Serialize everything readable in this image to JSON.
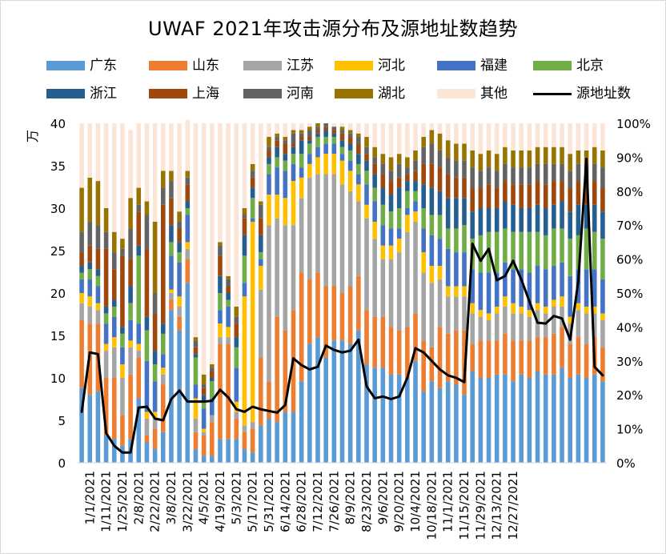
{
  "title": "UWAF 2021年攻击源分布及源地址数趋势",
  "chart_data": {
    "type": "bar",
    "stacked": true,
    "title": "UWAF 2021年攻击源分布及源地址数趋势",
    "ylabel": "万",
    "ylim": [
      0,
      40
    ],
    "yticks": [
      "0",
      "5",
      "10",
      "15",
      "20",
      "25",
      "30",
      "35",
      "40"
    ],
    "y2lim": [
      0,
      100
    ],
    "y2ticks": [
      "0%",
      "10%",
      "20%",
      "30%",
      "40%",
      "50%",
      "60%",
      "70%",
      "80%",
      "90%",
      "100%"
    ],
    "legend_position": "top",
    "grid": false,
    "xtick_labels": [
      "1/1/2021",
      "1/11/2021",
      "1/25/2021",
      "2/8/2021",
      "2/22/2021",
      "3/8/2021",
      "3/22/2021",
      "4/5/2021",
      "4/19/2021",
      "5/3/2021",
      "5/17/2021",
      "5/31/2021",
      "6/14/2021",
      "6/28/2021",
      "7/12/2021",
      "7/26/2021",
      "8/9/2021",
      "8/23/2021",
      "9/6/2021",
      "9/20/2021",
      "10/4/2021",
      "10/18/2021",
      "11/1/2021",
      "11/15/2021",
      "11/29/2021",
      "12/13/2021",
      "12/27/2021"
    ],
    "stack_series": [
      {
        "name": "广东",
        "color": "#5b9bd5"
      },
      {
        "name": "山东",
        "color": "#ed7d31"
      },
      {
        "name": "江苏",
        "color": "#a5a5a5"
      },
      {
        "name": "河北",
        "color": "#ffc000"
      },
      {
        "name": "福建",
        "color": "#4472c4"
      },
      {
        "name": "北京",
        "color": "#70ad47"
      },
      {
        "name": "浙江",
        "color": "#255e91"
      },
      {
        "name": "上海",
        "color": "#9e480e"
      },
      {
        "name": "河南",
        "color": "#636363"
      },
      {
        "name": "湖北",
        "color": "#997300"
      },
      {
        "name": "其他",
        "color": "#fbe5d6"
      }
    ],
    "line_series": {
      "name": "源地址数",
      "color": "#000000",
      "axis": "left"
    },
    "bars": [
      [
        22,
        20,
        5,
        3,
        4,
        2,
        2,
        4,
        6,
        13,
        19
      ],
      [
        20,
        21,
        5,
        3,
        5,
        3,
        2,
        5,
        7,
        13,
        16
      ],
      [
        21,
        20,
        4,
        2,
        5,
        3,
        2,
        6,
        7,
        13,
        17
      ],
      [
        8,
        17,
        8,
        2,
        6,
        3,
        2,
        17,
        5,
        7,
        25
      ],
      [
        7,
        18,
        9,
        3,
        6,
        3,
        2,
        9,
        5,
        6,
        32
      ],
      [
        5,
        9,
        11,
        4,
        5,
        4,
        2,
        21,
        2,
        3,
        34
      ],
      [
        7,
        19,
        8,
        2,
        6,
        5,
        5,
        8,
        9,
        9,
        20
      ],
      [
        19,
        12,
        2,
        2,
        6,
        20,
        3,
        10,
        2,
        5,
        19
      ],
      [
        6,
        2,
        5,
        2,
        15,
        9,
        4,
        20,
        10,
        4,
        23
      ],
      [
        4,
        6,
        3,
        2,
        9,
        5,
        4,
        11,
        6,
        21,
        29
      ],
      [
        9,
        14,
        3,
        2,
        4,
        6,
        3,
        35,
        5,
        5,
        14
      ],
      [
        45,
        3,
        2,
        1,
        10,
        4,
        5,
        8,
        5,
        3,
        14
      ],
      [
        39,
        4,
        3,
        3,
        10,
        3,
        3,
        4,
        2,
        3,
        26
      ],
      [
        53,
        7,
        3,
        2,
        8,
        2,
        2,
        5,
        2,
        2,
        15
      ],
      [
        4,
        5,
        4,
        6,
        4,
        8,
        1,
        2,
        2,
        1,
        63
      ],
      [
        2,
        6,
        1,
        1,
        6,
        2,
        2,
        2,
        1,
        3,
        74
      ],
      [
        2,
        10,
        2,
        0,
        5,
        5,
        1,
        2,
        1,
        1,
        71
      ],
      [
        7,
        28,
        2,
        4,
        4,
        5,
        5,
        6,
        3,
        1,
        35
      ],
      [
        7,
        28,
        2,
        3,
        6,
        2,
        2,
        2,
        2,
        1,
        45
      ],
      [
        7,
        6,
        2,
        3,
        10,
        6,
        3,
        4,
        2,
        3,
        54
      ],
      [
        4,
        5,
        2,
        38,
        4,
        8,
        6,
        5,
        1,
        2,
        25
      ],
      [
        3,
        7,
        2,
        59,
        1,
        6,
        3,
        3,
        2,
        2,
        12
      ],
      [
        11,
        20,
        20,
        7,
        2,
        2,
        5,
        5,
        4,
        1,
        23
      ],
      [
        13,
        11,
        46,
        9,
        6,
        3,
        2,
        2,
        1,
        3,
        4
      ],
      [
        12,
        31,
        29,
        7,
        8,
        3,
        3,
        2,
        1,
        1,
        3
      ],
      [
        15,
        24,
        31,
        8,
        8,
        3,
        2,
        3,
        1,
        1,
        4
      ],
      [
        15,
        30,
        25,
        13,
        5,
        3,
        2,
        1,
        3,
        1,
        2
      ],
      [
        24,
        32,
        22,
        6,
        3,
        4,
        4,
        1,
        1,
        1,
        2
      ],
      [
        35,
        19,
        30,
        4,
        3,
        3,
        1,
        1,
        2,
        1,
        1
      ],
      [
        37,
        19,
        29,
        5,
        3,
        3,
        1,
        1,
        1,
        1,
        0
      ],
      [
        31,
        21,
        33,
        6,
        3,
        2,
        2,
        1,
        1,
        0,
        0
      ],
      [
        36,
        16,
        33,
        6,
        3,
        2,
        1,
        1,
        1,
        0,
        1
      ],
      [
        36,
        14,
        32,
        7,
        2,
        2,
        2,
        2,
        1,
        1,
        1
      ],
      [
        35,
        17,
        28,
        6,
        3,
        3,
        2,
        2,
        1,
        1,
        2
      ],
      [
        39,
        16,
        22,
        5,
        3,
        3,
        3,
        3,
        2,
        1,
        3
      ],
      [
        29,
        16,
        27,
        4,
        6,
        4,
        3,
        2,
        2,
        3,
        4
      ],
      [
        28,
        15,
        23,
        5,
        6,
        4,
        4,
        3,
        2,
        3,
        7
      ],
      [
        28,
        15,
        17,
        4,
        6,
        6,
        5,
        4,
        3,
        3,
        9
      ],
      [
        26,
        14,
        20,
        4,
        5,
        5,
        5,
        4,
        3,
        4,
        10
      ],
      [
        26,
        13,
        23,
        4,
        3,
        6,
        6,
        3,
        4,
        3,
        9
      ],
      [
        25,
        15,
        28,
        5,
        2,
        5,
        3,
        2,
        2,
        3,
        10
      ],
      [
        30,
        14,
        27,
        3,
        3,
        3,
        3,
        3,
        3,
        3,
        8
      ],
      [
        21,
        15,
        20,
        6,
        7,
        6,
        7,
        6,
        5,
        3,
        4
      ],
      [
        24,
        10,
        19,
        5,
        9,
        6,
        8,
        7,
        6,
        4,
        2
      ],
      [
        22,
        18,
        14,
        4,
        8,
        7,
        7,
        7,
        5,
        5,
        3
      ],
      [
        24,
        14,
        11,
        3,
        11,
        6,
        9,
        7,
        5,
        5,
        5
      ],
      [
        23,
        16,
        10,
        3,
        10,
        7,
        9,
        6,
        5,
        5,
        6
      ],
      [
        20,
        19,
        10,
        3,
        10,
        8,
        8,
        6,
        5,
        5,
        6
      ],
      [
        27,
        8,
        9,
        3,
        10,
        9,
        8,
        7,
        6,
        5,
        8
      ],
      [
        25,
        11,
        7,
        2,
        11,
        11,
        8,
        6,
        5,
        5,
        9
      ],
      [
        25,
        11,
        6,
        2,
        12,
        12,
        7,
        7,
        5,
        5,
        8
      ],
      [
        26,
        10,
        8,
        2,
        10,
        12,
        7,
        6,
        5,
        5,
        9
      ],
      [
        26,
        12,
        8,
        3,
        10,
        10,
        8,
        6,
        5,
        5,
        7
      ],
      [
        24,
        12,
        8,
        3,
        10,
        11,
        8,
        6,
        5,
        5,
        8
      ],
      [
        26,
        10,
        8,
        2,
        11,
        11,
        7,
        7,
        5,
        5,
        8
      ],
      [
        25,
        11,
        7,
        2,
        11,
        12,
        7,
        7,
        5,
        5,
        8
      ],
      [
        27,
        10,
        8,
        2,
        11,
        10,
        8,
        7,
        5,
        5,
        7
      ],
      [
        26,
        11,
        7,
        2,
        11,
        10,
        8,
        7,
        6,
        5,
        7
      ],
      [
        26,
        12,
        8,
        2,
        10,
        11,
        7,
        7,
        5,
        5,
        7
      ],
      [
        28,
        12,
        6,
        3,
        10,
        10,
        8,
        6,
        5,
        5,
        7
      ],
      [
        25,
        10,
        6,
        2,
        12,
        11,
        8,
        7,
        5,
        5,
        9
      ],
      [
        26,
        11,
        8,
        2,
        10,
        10,
        9,
        7,
        5,
        4,
        8
      ],
      [
        25,
        10,
        9,
        2,
        11,
        12,
        7,
        7,
        5,
        4,
        8
      ],
      [
        26,
        11,
        7,
        2,
        11,
        11,
        8,
        7,
        5,
        5,
        7
      ],
      [
        24,
        10,
        8,
        2,
        10,
        12,
        8,
        7,
        6,
        5,
        8
      ]
    ],
    "line_values": [
      6.0,
      13.0,
      12.8,
      3.5,
      2.0,
      1.2,
      1.2,
      6.5,
      6.6,
      5.2,
      5.0,
      7.5,
      8.5,
      7.2,
      7.2,
      7.2,
      7.3,
      8.6,
      7.7,
      6.3,
      6.0,
      6.6,
      6.3,
      6.1,
      5.9,
      6.8,
      12.3,
      11.5,
      11.0,
      11.3,
      13.8,
      13.3,
      13.0,
      13.2,
      14.5,
      9.0,
      7.6,
      7.8,
      7.5,
      7.8,
      10.0,
      13.5,
      13.0,
      12.0,
      11.0,
      10.3,
      10.0,
      9.5,
      25.8,
      23.8,
      25.2,
      21.5,
      22.0,
      23.8,
      21.6,
      19.0,
      16.5,
      16.4,
      17.3,
      17.0,
      14.5,
      21.4,
      35.8,
      11.3,
      10.3
    ]
  },
  "legend": [
    {
      "label": "广东",
      "color": "#5b9bd5",
      "kind": "bar"
    },
    {
      "label": "山东",
      "color": "#ed7d31",
      "kind": "bar"
    },
    {
      "label": "江苏",
      "color": "#a5a5a5",
      "kind": "bar"
    },
    {
      "label": "河北",
      "color": "#ffc000",
      "kind": "bar"
    },
    {
      "label": "福建",
      "color": "#4472c4",
      "kind": "bar"
    },
    {
      "label": "北京",
      "color": "#70ad47",
      "kind": "bar"
    },
    {
      "label": "浙江",
      "color": "#255e91",
      "kind": "bar"
    },
    {
      "label": "上海",
      "color": "#9e480e",
      "kind": "bar"
    },
    {
      "label": "河南",
      "color": "#636363",
      "kind": "bar"
    },
    {
      "label": "湖北",
      "color": "#997300",
      "kind": "bar"
    },
    {
      "label": "其他",
      "color": "#fbe5d6",
      "kind": "bar"
    },
    {
      "label": "源地址数",
      "color": "#000000",
      "kind": "line"
    }
  ]
}
